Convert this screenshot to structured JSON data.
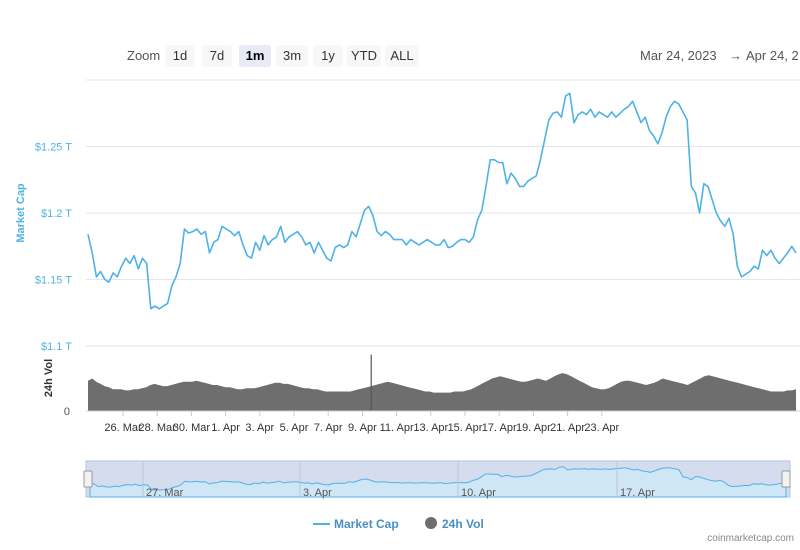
{
  "toolbar": {
    "zoom_label": "Zoom",
    "zoom_buttons": [
      "1d",
      "7d",
      "1m",
      "3m",
      "1y",
      "YTD",
      "ALL"
    ],
    "active_zoom": "1m",
    "range_from": "Mar 24, 2023",
    "range_arrow": "→",
    "range_to": "Apr 24, 2"
  },
  "credit": "coinmarketcap.com",
  "chart_data": {
    "type": "line",
    "x_tick_labels": [
      "26. Mar",
      "28. Mar",
      "30. Mar",
      "1. Apr",
      "3. Apr",
      "5. Apr",
      "7. Apr",
      "9. Apr",
      "11. Apr",
      "13. Apr",
      "15. Apr",
      "17. Apr",
      "19. Apr",
      "21. Apr",
      "23. Apr"
    ],
    "navigator_tick_labels": [
      "27. Mar",
      "3. Apr",
      "10. Apr",
      "17. Apr"
    ],
    "y_tick_labels": [
      "$1.25 T",
      "$1.2 T",
      "$1.15 T",
      "$1.1 T"
    ],
    "y_ticks": [
      1.25,
      1.2,
      1.15,
      1.1
    ],
    "ylim": [
      1.1,
      1.3
    ],
    "ylabel": "Market Cap",
    "volume_label": "24h Vol",
    "volume_tick_label": "0",
    "grid": true,
    "legend_position": "bottom-center",
    "series": [
      {
        "name": "Market Cap",
        "color": "#4fb2e6",
        "points": [
          [
            0,
            1.184
          ],
          [
            1,
            1.17
          ],
          [
            2,
            1.152
          ],
          [
            3,
            1.156
          ],
          [
            4,
            1.15
          ],
          [
            5,
            1.148
          ],
          [
            6,
            1.155
          ],
          [
            7,
            1.152
          ],
          [
            8,
            1.16
          ],
          [
            9,
            1.166
          ],
          [
            10,
            1.162
          ],
          [
            11,
            1.168
          ],
          [
            12,
            1.158
          ],
          [
            13,
            1.166
          ],
          [
            14,
            1.162
          ],
          [
            15,
            1.128
          ],
          [
            16,
            1.13
          ],
          [
            17,
            1.128
          ],
          [
            18,
            1.13
          ],
          [
            19,
            1.132
          ],
          [
            20,
            1.145
          ],
          [
            21,
            1.152
          ],
          [
            22,
            1.162
          ],
          [
            23,
            1.188
          ],
          [
            24,
            1.185
          ],
          [
            25,
            1.186
          ],
          [
            26,
            1.188
          ],
          [
            27,
            1.184
          ],
          [
            28,
            1.186
          ],
          [
            29,
            1.17
          ],
          [
            30,
            1.178
          ],
          [
            31,
            1.18
          ],
          [
            32,
            1.19
          ],
          [
            33,
            1.188
          ],
          [
            34,
            1.186
          ],
          [
            35,
            1.183
          ],
          [
            36,
            1.186
          ],
          [
            37,
            1.176
          ],
          [
            38,
            1.168
          ],
          [
            39,
            1.166
          ],
          [
            40,
            1.178
          ],
          [
            41,
            1.172
          ],
          [
            42,
            1.183
          ],
          [
            43,
            1.176
          ],
          [
            44,
            1.18
          ],
          [
            45,
            1.182
          ],
          [
            46,
            1.19
          ],
          [
            47,
            1.178
          ],
          [
            48,
            1.182
          ],
          [
            49,
            1.184
          ],
          [
            50,
            1.186
          ],
          [
            51,
            1.182
          ],
          [
            52,
            1.176
          ],
          [
            53,
            1.178
          ],
          [
            54,
            1.17
          ],
          [
            55,
            1.178
          ],
          [
            56,
            1.172
          ],
          [
            57,
            1.166
          ],
          [
            58,
            1.164
          ],
          [
            59,
            1.174
          ],
          [
            60,
            1.176
          ],
          [
            61,
            1.174
          ],
          [
            62,
            1.176
          ],
          [
            63,
            1.186
          ],
          [
            64,
            1.182
          ],
          [
            65,
            1.192
          ],
          [
            66,
            1.202
          ],
          [
            67,
            1.205
          ],
          [
            68,
            1.198
          ],
          [
            69,
            1.186
          ],
          [
            70,
            1.183
          ],
          [
            71,
            1.186
          ],
          [
            72,
            1.184
          ],
          [
            73,
            1.18
          ],
          [
            74,
            1.18
          ],
          [
            75,
            1.18
          ],
          [
            76,
            1.176
          ],
          [
            77,
            1.18
          ],
          [
            78,
            1.178
          ],
          [
            79,
            1.176
          ],
          [
            80,
            1.178
          ],
          [
            81,
            1.18
          ],
          [
            82,
            1.178
          ],
          [
            83,
            1.176
          ],
          [
            84,
            1.176
          ],
          [
            85,
            1.18
          ],
          [
            86,
            1.174
          ],
          [
            87,
            1.175
          ],
          [
            88,
            1.178
          ],
          [
            89,
            1.18
          ],
          [
            90,
            1.18
          ],
          [
            91,
            1.178
          ],
          [
            92,
            1.182
          ],
          [
            93,
            1.195
          ],
          [
            94,
            1.202
          ],
          [
            95,
            1.22
          ],
          [
            96,
            1.24
          ],
          [
            97,
            1.24
          ],
          [
            98,
            1.238
          ],
          [
            99,
            1.238
          ],
          [
            100,
            1.222
          ],
          [
            101,
            1.23
          ],
          [
            102,
            1.226
          ],
          [
            103,
            1.22
          ],
          [
            104,
            1.22
          ],
          [
            105,
            1.224
          ],
          [
            106,
            1.226
          ],
          [
            107,
            1.228
          ],
          [
            108,
            1.24
          ],
          [
            109,
            1.255
          ],
          [
            110,
            1.27
          ],
          [
            111,
            1.275
          ],
          [
            112,
            1.276
          ],
          [
            113,
            1.272
          ],
          [
            114,
            1.288
          ],
          [
            115,
            1.29
          ],
          [
            116,
            1.268
          ],
          [
            117,
            1.274
          ],
          [
            118,
            1.276
          ],
          [
            119,
            1.274
          ],
          [
            120,
            1.278
          ],
          [
            121,
            1.272
          ],
          [
            122,
            1.276
          ],
          [
            123,
            1.274
          ],
          [
            124,
            1.272
          ],
          [
            125,
            1.276
          ],
          [
            126,
            1.272
          ],
          [
            127,
            1.275
          ],
          [
            128,
            1.278
          ],
          [
            129,
            1.28
          ],
          [
            130,
            1.284
          ],
          [
            131,
            1.276
          ],
          [
            132,
            1.268
          ],
          [
            133,
            1.272
          ],
          [
            134,
            1.262
          ],
          [
            135,
            1.258
          ],
          [
            136,
            1.252
          ],
          [
            137,
            1.26
          ],
          [
            138,
            1.272
          ],
          [
            139,
            1.28
          ],
          [
            140,
            1.284
          ],
          [
            141,
            1.282
          ],
          [
            142,
            1.276
          ],
          [
            143,
            1.27
          ],
          [
            144,
            1.22
          ],
          [
            145,
            1.215
          ],
          [
            146,
            1.2
          ],
          [
            147,
            1.222
          ],
          [
            148,
            1.22
          ],
          [
            149,
            1.21
          ],
          [
            150,
            1.2
          ],
          [
            151,
            1.194
          ],
          [
            152,
            1.19
          ],
          [
            153,
            1.196
          ],
          [
            154,
            1.184
          ],
          [
            155,
            1.16
          ],
          [
            156,
            1.152
          ],
          [
            157,
            1.154
          ],
          [
            158,
            1.156
          ],
          [
            159,
            1.16
          ],
          [
            160,
            1.158
          ],
          [
            161,
            1.172
          ],
          [
            162,
            1.168
          ],
          [
            163,
            1.172
          ],
          [
            164,
            1.166
          ],
          [
            165,
            1.162
          ],
          [
            166,
            1.166
          ],
          [
            167,
            1.17
          ],
          [
            168,
            1.175
          ],
          [
            169,
            1.17
          ]
        ]
      },
      {
        "name": "24h Vol",
        "color": "#666666",
        "values": [
          28,
          30,
          27,
          25,
          23,
          22,
          20,
          20,
          20,
          19,
          19,
          20,
          20,
          21,
          22,
          24,
          25,
          24,
          23,
          23,
          24,
          25,
          26,
          27,
          27,
          27,
          28,
          27,
          26,
          25,
          24,
          24,
          23,
          22,
          22,
          21,
          20,
          20,
          21,
          21,
          21,
          22,
          23,
          24,
          25,
          26,
          26,
          25,
          25,
          24,
          23,
          22,
          21,
          21,
          20,
          20,
          19,
          18,
          18,
          18,
          18,
          18,
          18,
          18,
          19,
          20,
          21,
          22,
          23,
          24,
          25,
          26,
          27,
          26,
          25,
          24,
          23,
          22,
          21,
          20,
          19,
          18,
          18,
          17,
          17,
          17,
          17,
          17,
          18,
          18,
          18,
          19,
          20,
          22,
          24,
          26,
          28,
          30,
          31,
          32,
          31,
          30,
          29,
          28,
          27,
          27,
          28,
          29,
          30,
          29,
          28,
          30,
          32,
          34,
          35,
          34,
          32,
          30,
          28,
          26,
          24,
          22,
          21,
          20,
          20,
          21,
          23,
          25,
          27,
          28,
          28,
          27,
          26,
          25,
          24,
          25,
          26,
          28,
          30,
          29,
          28,
          27,
          26,
          25,
          24,
          26,
          28,
          30,
          32,
          33,
          32,
          31,
          30,
          29,
          28,
          27,
          26,
          25,
          24,
          23,
          22,
          21,
          20,
          19,
          18,
          18,
          18,
          18,
          19,
          19,
          20
        ],
        "spike": {
          "index": 68,
          "value": 52
        }
      }
    ]
  }
}
